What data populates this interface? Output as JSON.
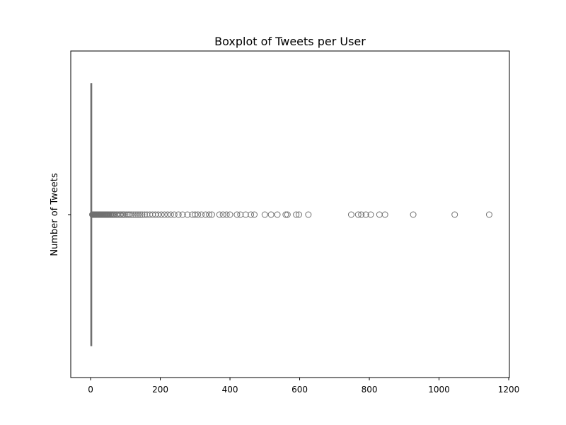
{
  "chart_data": {
    "type": "boxplot",
    "title": "Boxplot of Tweets per User",
    "xlabel": "",
    "ylabel": "Number of Tweets",
    "orientation": "horizontal",
    "xlim": [
      -57,
      1202
    ],
    "xticks": [
      0,
      200,
      400,
      600,
      800,
      1000,
      1200
    ],
    "xtick_labels": [
      "0",
      "200",
      "400",
      "600",
      "800",
      "1000",
      "1200"
    ],
    "grid": false,
    "colors": {
      "box": "#707070",
      "outlier_edge": "#707070",
      "axes": "#000000"
    },
    "box": {
      "min": 0,
      "q1": 1,
      "median": 1,
      "q3": 2,
      "max": 4
    },
    "outliers": [
      5,
      6,
      7,
      8,
      9,
      10,
      11,
      12,
      13,
      14,
      15,
      16,
      17,
      18,
      19,
      20,
      21,
      22,
      23,
      24,
      25,
      26,
      27,
      28,
      29,
      30,
      32,
      34,
      36,
      38,
      40,
      42,
      44,
      46,
      48,
      50,
      52,
      55,
      58,
      61,
      64,
      67,
      70,
      74,
      78,
      82,
      86,
      90,
      94,
      98,
      103,
      108,
      113,
      118,
      124,
      130,
      136,
      142,
      148,
      155,
      162,
      170,
      178,
      186,
      194,
      203,
      212,
      221,
      230,
      240,
      252,
      264,
      278,
      292,
      300,
      308,
      318,
      330,
      340,
      348,
      370,
      380,
      390,
      400,
      420,
      430,
      445,
      460,
      470,
      500,
      518,
      536,
      560,
      565,
      590,
      598,
      625,
      748,
      768,
      777,
      790,
      804,
      829,
      845,
      926,
      1045,
      1144
    ]
  }
}
